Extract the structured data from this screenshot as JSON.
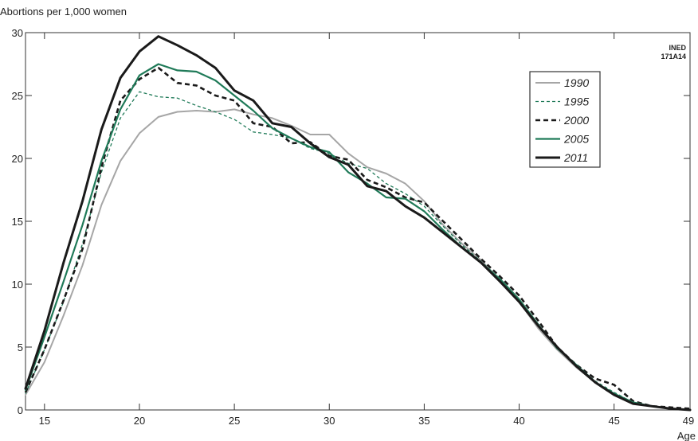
{
  "chart_data": {
    "type": "line",
    "ylabel": "Abortions per 1,000 women",
    "xlabel": "Age",
    "source_note": [
      "INED",
      "171A14"
    ],
    "xlim": [
      14,
      49
    ],
    "ylim": [
      0,
      30
    ],
    "x_ticks": [
      15,
      20,
      25,
      30,
      35,
      40,
      45,
      49
    ],
    "y_ticks": [
      0,
      5,
      10,
      15,
      20,
      25,
      30
    ],
    "grid": false,
    "legend_position": "top-right",
    "series": [
      {
        "name": "1990",
        "color": "#a6a6a6",
        "dash": "solid",
        "width": 2,
        "x": [
          14,
          15,
          16,
          17,
          18,
          19,
          20,
          21,
          22,
          23,
          24,
          25,
          26,
          27,
          28,
          29,
          30,
          31,
          32,
          33,
          34,
          35,
          36,
          37,
          38,
          39,
          40,
          41,
          42,
          43,
          44,
          45,
          46,
          47,
          48,
          49
        ],
        "y": [
          1.2,
          3.8,
          7.5,
          11.5,
          16.3,
          19.8,
          22.0,
          23.3,
          23.7,
          23.8,
          23.7,
          23.9,
          23.5,
          23.2,
          22.6,
          21.9,
          21.9,
          20.4,
          19.3,
          18.8,
          18.0,
          16.6,
          14.7,
          13.2,
          11.9,
          10.3,
          8.6,
          6.5,
          4.8,
          3.4,
          2.2,
          1.2,
          0.5,
          0.3,
          0.1,
          0.0
        ]
      },
      {
        "name": "1995",
        "color": "#1f7a58",
        "dash": "dashed",
        "width": 1.3,
        "x": [
          14,
          15,
          16,
          17,
          18,
          19,
          20,
          21,
          22,
          23,
          24,
          25,
          26,
          27,
          28,
          29,
          30,
          31,
          32,
          33,
          34,
          35,
          36,
          37,
          38,
          39,
          40,
          41,
          42,
          43,
          44,
          45,
          46,
          47,
          48,
          49
        ],
        "y": [
          1.3,
          4.8,
          8.6,
          13.2,
          18.9,
          23.2,
          25.3,
          24.9,
          24.8,
          24.2,
          23.7,
          23.1,
          22.1,
          21.9,
          21.6,
          20.8,
          20.4,
          19.6,
          19.2,
          18.0,
          17.2,
          16.2,
          14.6,
          13.1,
          11.8,
          10.4,
          8.8,
          6.8,
          4.9,
          3.6,
          2.3,
          1.4,
          0.6,
          0.3,
          0.1,
          0.0
        ]
      },
      {
        "name": "2000",
        "color": "#1a1a1a",
        "dash": "dashed",
        "width": 2.6,
        "x": [
          14,
          15,
          16,
          17,
          18,
          19,
          20,
          21,
          22,
          23,
          24,
          25,
          26,
          27,
          28,
          29,
          30,
          31,
          32,
          33,
          34,
          35,
          36,
          37,
          38,
          39,
          40,
          41,
          42,
          43,
          44,
          45,
          46,
          47,
          48,
          49
        ],
        "y": [
          1.4,
          4.8,
          8.7,
          12.8,
          19.3,
          24.6,
          26.3,
          27.2,
          26.0,
          25.8,
          25.0,
          24.6,
          22.8,
          22.5,
          21.2,
          21.3,
          20.2,
          19.9,
          18.3,
          17.7,
          16.9,
          16.5,
          15.0,
          13.5,
          12.0,
          10.6,
          9.1,
          7.1,
          5.0,
          3.6,
          2.5,
          2.0,
          0.7,
          0.3,
          0.2,
          0.1
        ]
      },
      {
        "name": "2005",
        "color": "#1f7a58",
        "dash": "solid",
        "width": 2.2,
        "x": [
          14,
          15,
          16,
          17,
          18,
          19,
          20,
          21,
          22,
          23,
          24,
          25,
          26,
          27,
          28,
          29,
          30,
          31,
          32,
          33,
          34,
          35,
          36,
          37,
          38,
          39,
          40,
          41,
          42,
          43,
          44,
          45,
          46,
          47,
          48,
          49
        ],
        "y": [
          1.6,
          5.8,
          10.2,
          14.7,
          19.8,
          23.9,
          26.6,
          27.5,
          27.0,
          26.9,
          26.2,
          25.0,
          23.8,
          22.4,
          21.6,
          20.9,
          20.5,
          18.9,
          18.0,
          16.9,
          16.8,
          15.8,
          14.3,
          12.9,
          11.7,
          10.4,
          8.8,
          6.8,
          4.9,
          3.6,
          2.2,
          1.3,
          0.6,
          0.3,
          0.1,
          0.0
        ]
      },
      {
        "name": "2011",
        "color": "#1a1a1a",
        "dash": "solid",
        "width": 3,
        "x": [
          14,
          15,
          16,
          17,
          18,
          19,
          20,
          21,
          22,
          23,
          24,
          25,
          26,
          27,
          28,
          29,
          30,
          31,
          32,
          33,
          34,
          35,
          36,
          37,
          38,
          39,
          40,
          41,
          42,
          43,
          44,
          45,
          46,
          47,
          48,
          49
        ],
        "y": [
          1.7,
          6.3,
          11.7,
          16.6,
          22.3,
          26.4,
          28.5,
          29.7,
          29.0,
          28.2,
          27.2,
          25.4,
          24.6,
          22.8,
          22.5,
          21.2,
          20.1,
          19.5,
          17.8,
          17.4,
          16.2,
          15.3,
          14.1,
          12.9,
          11.7,
          10.2,
          8.6,
          6.7,
          5.0,
          3.5,
          2.2,
          1.2,
          0.5,
          0.3,
          0.1,
          0.0
        ]
      }
    ]
  }
}
